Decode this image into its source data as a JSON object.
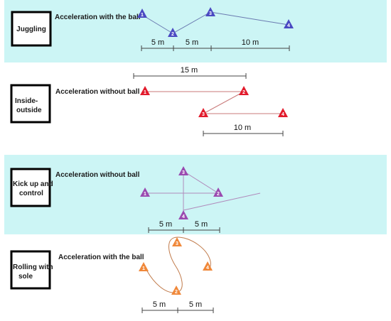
{
  "colors": {
    "band": "#ccf5f5",
    "blue": "#4a49c2",
    "red": "#e21b2c",
    "purple": "#9a4bb0",
    "orange": "#f0883a",
    "blue_line": "#6a7ab0",
    "red_line": "#c97a7a",
    "purple_line": "#b08abb",
    "orange_line": "#c07a4a"
  },
  "icons": [
    "cone-icon"
  ],
  "drills": [
    {
      "name": "Juggling",
      "description": "Acceleration with the ball",
      "cones": [
        "1",
        "2",
        "3",
        "4"
      ],
      "distances": [
        "5 m",
        "5 m",
        "10 m"
      ]
    },
    {
      "name_lines": [
        "Inside-",
        "outside"
      ],
      "description": "Acceleration without ball",
      "cones": [
        "1",
        "2",
        "3",
        "4"
      ],
      "distances": [
        "15 m",
        "10 m"
      ]
    },
    {
      "name_lines": [
        "Kick up and",
        "control"
      ],
      "description": "Acceleration without ball",
      "cones": [
        "1",
        "2",
        "3",
        "4"
      ],
      "distances": [
        "5 m",
        "5 m"
      ]
    },
    {
      "name_lines": [
        "Rolling with",
        "sole"
      ],
      "description": "Acceleration with the ball",
      "cones": [
        "1",
        "2",
        "3",
        "4"
      ],
      "distances": [
        "5 m",
        "5 m"
      ]
    }
  ]
}
